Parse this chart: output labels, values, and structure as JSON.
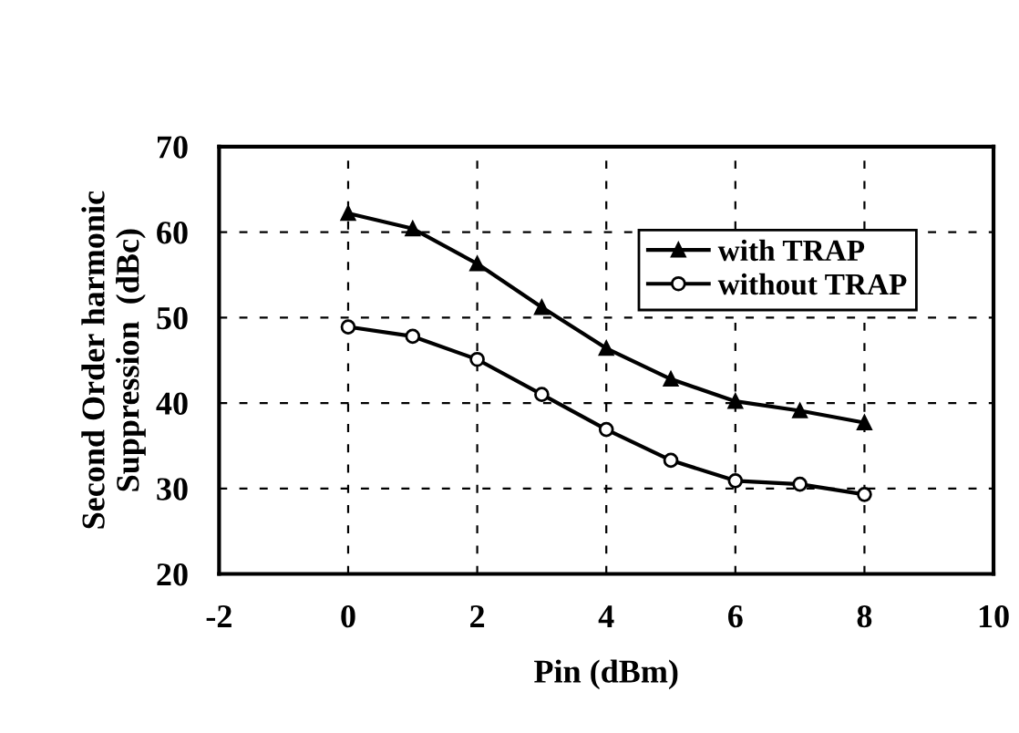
{
  "chart_data": {
    "type": "line",
    "xlabel": "Pin (dBm)",
    "ylabel": "Second Order harmonic\nSuppression  (dBc)",
    "x": [
      0,
      1,
      2,
      3,
      4,
      5,
      6,
      7,
      8
    ],
    "series": [
      {
        "name": "with TRAP",
        "color": "#000000",
        "marker": "triangle",
        "values": [
          62.2,
          60.4,
          56.3,
          51.2,
          46.4,
          42.8,
          40.2,
          39.1,
          37.7
        ]
      },
      {
        "name": "without TRAP",
        "color": "#000000",
        "marker": "circle",
        "values": [
          48.9,
          47.8,
          45.1,
          41.0,
          36.9,
          33.3,
          30.9,
          30.5,
          29.3
        ]
      }
    ],
    "xlim": [
      -2,
      10
    ],
    "xticks": [
      -2,
      0,
      2,
      4,
      6,
      8,
      10
    ],
    "ylim": [
      20,
      70
    ],
    "yticks": [
      20,
      30,
      40,
      50,
      60,
      70
    ],
    "grid": true,
    "legend": "top right",
    "line_style": "solid"
  }
}
